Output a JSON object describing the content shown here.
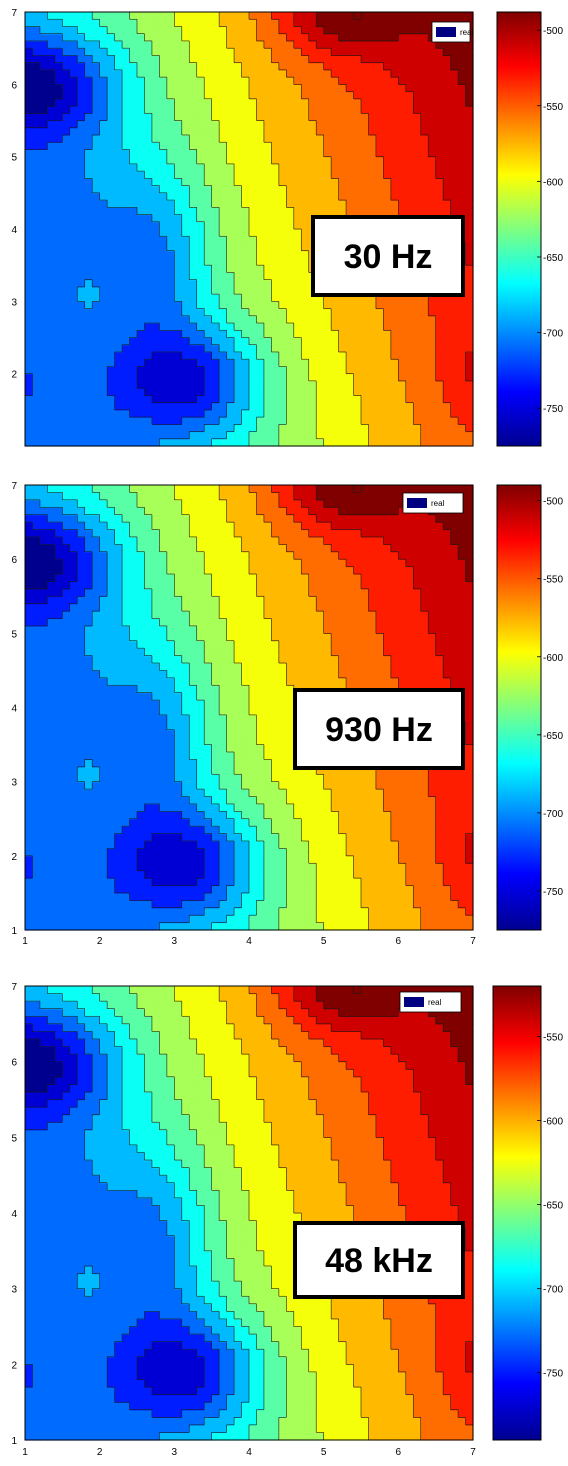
{
  "chart_data": [
    {
      "type": "heatmap",
      "label": "30 Hz",
      "legend": "real",
      "x_ticks": [
        "",
        "",
        "",
        "",
        "",
        "",
        ""
      ],
      "y_ticks": [
        "2",
        "3",
        "4",
        "5",
        "6",
        "7"
      ],
      "xlim": [
        1,
        7
      ],
      "ylim": [
        1,
        7
      ],
      "colorbar": {
        "ticks": [
          "-500",
          "-550",
          "-600",
          "-650",
          "-700",
          "-750"
        ],
        "values": [
          -500,
          -550,
          -600,
          -650,
          -700,
          -750
        ],
        "range": [
          -775,
          -488
        ]
      }
    },
    {
      "type": "heatmap",
      "label": "930 Hz",
      "legend": "real",
      "x_ticks": [
        "1",
        "2",
        "3",
        "4",
        "5",
        "6",
        "7"
      ],
      "y_ticks": [
        "1",
        "2",
        "3",
        "4",
        "5",
        "6",
        "7"
      ],
      "xlim": [
        1,
        7
      ],
      "ylim": [
        1,
        7
      ],
      "colorbar": {
        "ticks": [
          "-500",
          "-550",
          "-600",
          "-650",
          "-700",
          "-750"
        ],
        "values": [
          -500,
          -550,
          -600,
          -650,
          -700,
          -750
        ],
        "range": [
          -775,
          -490
        ]
      }
    },
    {
      "type": "heatmap",
      "label": "48 kHz",
      "legend": "real",
      "x_ticks": [
        "1",
        "2",
        "3",
        "4",
        "5",
        "6",
        "7"
      ],
      "y_ticks": [
        "1",
        "2",
        "3",
        "4",
        "5",
        "6",
        "7"
      ],
      "xlim": [
        1,
        7
      ],
      "ylim": [
        1,
        7
      ],
      "colorbar": {
        "ticks": [
          "-550",
          "-600",
          "-650",
          "-700",
          "-750"
        ],
        "values": [
          -550,
          -600,
          -650,
          -700,
          -750
        ],
        "range": [
          -790,
          -520
        ]
      }
    }
  ],
  "colors": {
    "dark_blue": "#00008f",
    "blue": "#0000ff",
    "cyan": "#00ffff",
    "yellow": "#ffff00",
    "red": "#ff0000",
    "dark_red": "#800000",
    "legend_swatch": "#000080"
  }
}
